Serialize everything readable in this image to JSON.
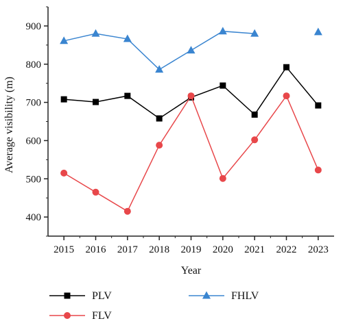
{
  "chart_data": {
    "type": "line",
    "xlabel": "Year",
    "ylabel": "Average visibility (m)",
    "x": [
      2015,
      2016,
      2017,
      2018,
      2019,
      2020,
      2021,
      2022,
      2023
    ],
    "xlim": [
      2014.5,
      2023.5
    ],
    "ylim": [
      350,
      950
    ],
    "yticks": [
      400,
      500,
      600,
      700,
      800,
      900
    ],
    "grid": false,
    "legend_placement": "bottom",
    "series": [
      {
        "name": "PLV",
        "color": "#000000",
        "marker": "square",
        "values": [
          708,
          701,
          717,
          658,
          713,
          744,
          668,
          792,
          692
        ]
      },
      {
        "name": "FLV",
        "color": "#e8474a",
        "marker": "circle",
        "values": [
          515,
          465,
          415,
          588,
          717,
          501,
          602,
          717,
          523
        ]
      },
      {
        "name": "FHLV",
        "color": "#3a85d0",
        "marker": "triangle",
        "values": [
          861,
          880,
          866,
          786,
          836,
          886,
          880,
          null,
          884
        ]
      }
    ]
  }
}
